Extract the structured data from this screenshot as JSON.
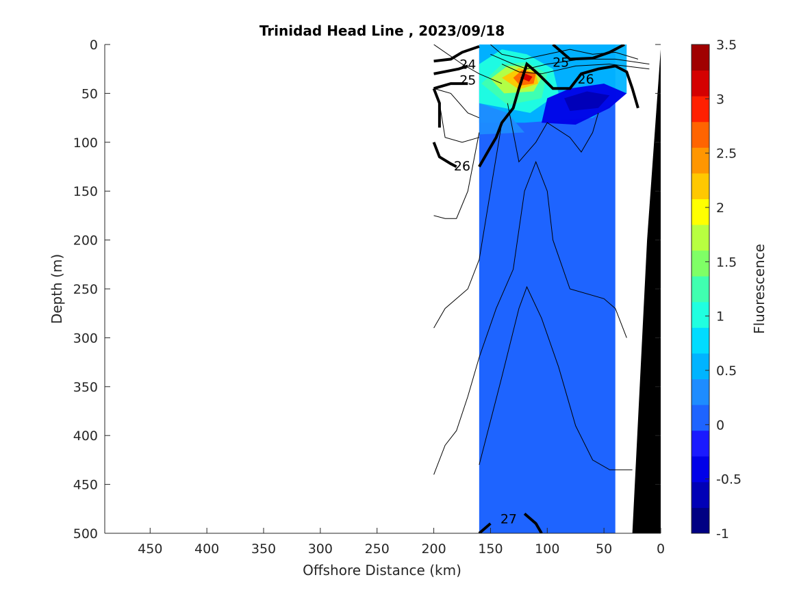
{
  "chart_data": {
    "type": "heatmap",
    "title": "Trinidad Head Line , 2023/09/18",
    "xlabel": "Offshore Distance (km)",
    "ylabel": "Depth (m)",
    "xlim": [
      490,
      0
    ],
    "ylim": [
      0,
      500
    ],
    "x_reversed": true,
    "y_reversed": true,
    "x_ticks": [
      450,
      400,
      350,
      300,
      250,
      200,
      150,
      100,
      50,
      0
    ],
    "y_ticks": [
      0,
      50,
      100,
      150,
      200,
      250,
      300,
      350,
      400,
      450,
      500
    ],
    "colorbar": {
      "label": "Fluorescence",
      "min": -1,
      "max": 3.5,
      "ticks": [
        -1,
        -0.5,
        0,
        0.5,
        1,
        1.5,
        2,
        2.5,
        3,
        3.5
      ],
      "levels": [
        -1,
        -0.75,
        -0.5,
        -0.25,
        0,
        0.25,
        0.5,
        0.75,
        1,
        1.25,
        1.5,
        1.75,
        2,
        2.25,
        2.5,
        2.75,
        3,
        3.25,
        3.5
      ],
      "colors": [
        "#000083",
        "#0000b6",
        "#0000e8",
        "#1a1aff",
        "#1e64ff",
        "#1e8cff",
        "#00b4ff",
        "#00dcff",
        "#20ffe0",
        "#40ffb0",
        "#7fff66",
        "#b8ff40",
        "#ffff00",
        "#ffc800",
        "#ff9600",
        "#ff6400",
        "#ff2000",
        "#d40000",
        "#a00000"
      ]
    },
    "background_fluorescence": 0.1,
    "fluorescence_region": {
      "x_range": [
        160,
        40
      ],
      "y_range": [
        0,
        500
      ]
    },
    "fluorescence_features": [
      {
        "label": "surface maximum",
        "x": 118,
        "y": 33,
        "value": 2.8
      },
      {
        "label": "subsurface minimum",
        "x": 75,
        "y": 55,
        "value": -0.3
      }
    ],
    "sigma_contours": [
      {
        "level": 24,
        "x": 170,
        "y": 20
      },
      {
        "level": 25,
        "x": 170,
        "y": 36
      },
      {
        "level": 25,
        "x": 88,
        "y": 18
      },
      {
        "level": 26,
        "x": 66,
        "y": 35
      },
      {
        "level": 26,
        "x": 175,
        "y": 124
      },
      {
        "level": 27,
        "x": 134,
        "y": 485
      }
    ],
    "bathymetry": {
      "color": "#000000",
      "x_range": [
        0,
        25
      ],
      "depth_at_shore": 5
    }
  }
}
